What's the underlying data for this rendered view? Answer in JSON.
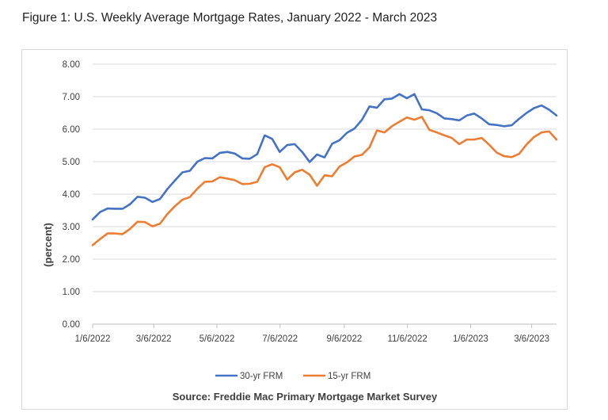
{
  "figure_title": "Figure 1: U.S. Weekly Average Mortgage Rates, January 2022 - March 2023",
  "chart_data": {
    "type": "line",
    "ylabel": "(percent)",
    "ylim": [
      0,
      8
    ],
    "yticks": [
      "0.00",
      "1.00",
      "2.00",
      "3.00",
      "4.00",
      "5.00",
      "6.00",
      "7.00",
      "8.00"
    ],
    "xticks": [
      "1/6/2022",
      "3/6/2022",
      "5/6/2022",
      "7/6/2022",
      "9/6/2022",
      "11/6/2022",
      "1/6/2023",
      "3/6/2023"
    ],
    "x_start": "1/6/2022",
    "x_end": "3/30/2023",
    "grid": "horizontal",
    "legend_position": "bottom",
    "source": "Source: Freddie Mac Primary Mortgage Market Survey",
    "series": [
      {
        "name": "30-yr FRM",
        "color": "#4472C4",
        "values": [
          3.22,
          3.45,
          3.56,
          3.55,
          3.55,
          3.69,
          3.92,
          3.89,
          3.76,
          3.85,
          4.16,
          4.42,
          4.67,
          4.72,
          5.0,
          5.11,
          5.1,
          5.27,
          5.3,
          5.25,
          5.1,
          5.09,
          5.23,
          5.81,
          5.7,
          5.3,
          5.51,
          5.54,
          5.3,
          4.99,
          5.22,
          5.13,
          5.55,
          5.66,
          5.89,
          6.02,
          6.29,
          6.7,
          6.66,
          6.92,
          6.94,
          7.08,
          6.95,
          7.08,
          6.61,
          6.58,
          6.49,
          6.33,
          6.31,
          6.27,
          6.42,
          6.48,
          6.33,
          6.15,
          6.13,
          6.09,
          6.12,
          6.32,
          6.5,
          6.65,
          6.73,
          6.6,
          6.42
        ]
      },
      {
        "name": "15-yr FRM",
        "color": "#ED7D31",
        "values": [
          2.43,
          2.62,
          2.79,
          2.79,
          2.77,
          2.93,
          3.15,
          3.14,
          3.01,
          3.09,
          3.39,
          3.63,
          3.83,
          3.91,
          4.17,
          4.38,
          4.39,
          4.52,
          4.48,
          4.43,
          4.31,
          4.32,
          4.38,
          4.83,
          4.92,
          4.83,
          4.45,
          4.67,
          4.75,
          4.6,
          4.26,
          4.58,
          4.55,
          4.85,
          4.98,
          5.16,
          5.21,
          5.44,
          5.96,
          5.9,
          6.09,
          6.23,
          6.36,
          6.29,
          6.38,
          5.98,
          5.9,
          5.81,
          5.73,
          5.54,
          5.68,
          5.68,
          5.73,
          5.52,
          5.28,
          5.17,
          5.14,
          5.24,
          5.53,
          5.76,
          5.9,
          5.93,
          5.68
        ]
      }
    ]
  }
}
